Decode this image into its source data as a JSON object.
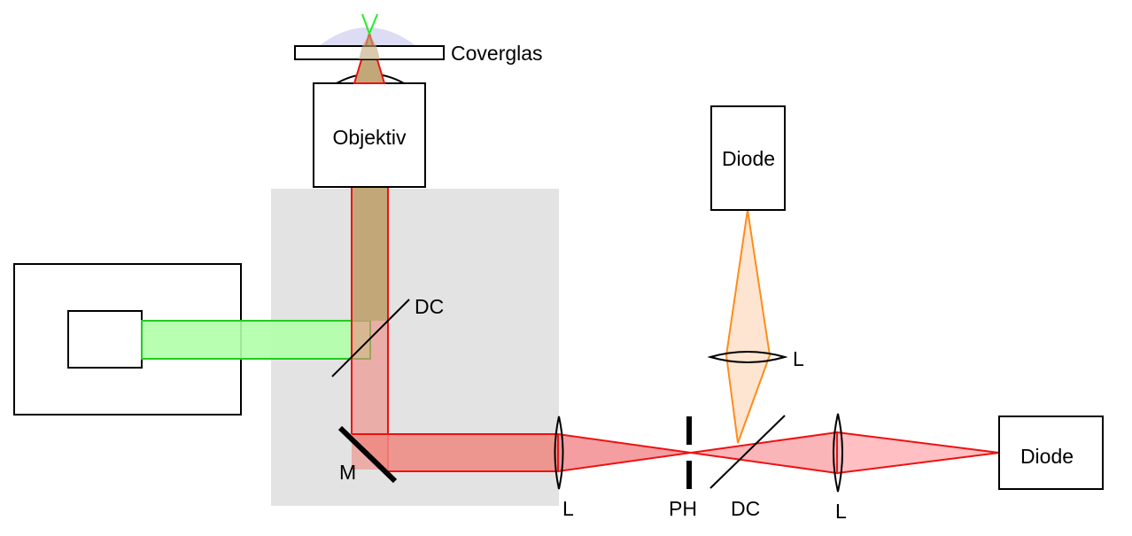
{
  "labels": {
    "coverglass": "Coverglas",
    "objective": "Objektiv",
    "dichroic_1": "DC",
    "dichroic_2": "DC",
    "mirror": "M",
    "lens_1": "L",
    "lens_2": "L",
    "lens_3": "L",
    "pinhole": "PH",
    "diode_top": "Diode",
    "diode_right": "Diode"
  },
  "colors": {
    "filter_box": "#e3e3e3",
    "green_beam_fill": "#b0ffa8",
    "green_beam_stroke": "#22cc22",
    "red_beam_stroke": "#ee1111",
    "red_beam_fill": "#ee8880",
    "mixed_beam_fill": "#c2a878",
    "orange_beam_fill": "#fde2cc",
    "orange_beam_stroke": "#ff8c1a",
    "focus_glow": "#dcdcf4"
  }
}
